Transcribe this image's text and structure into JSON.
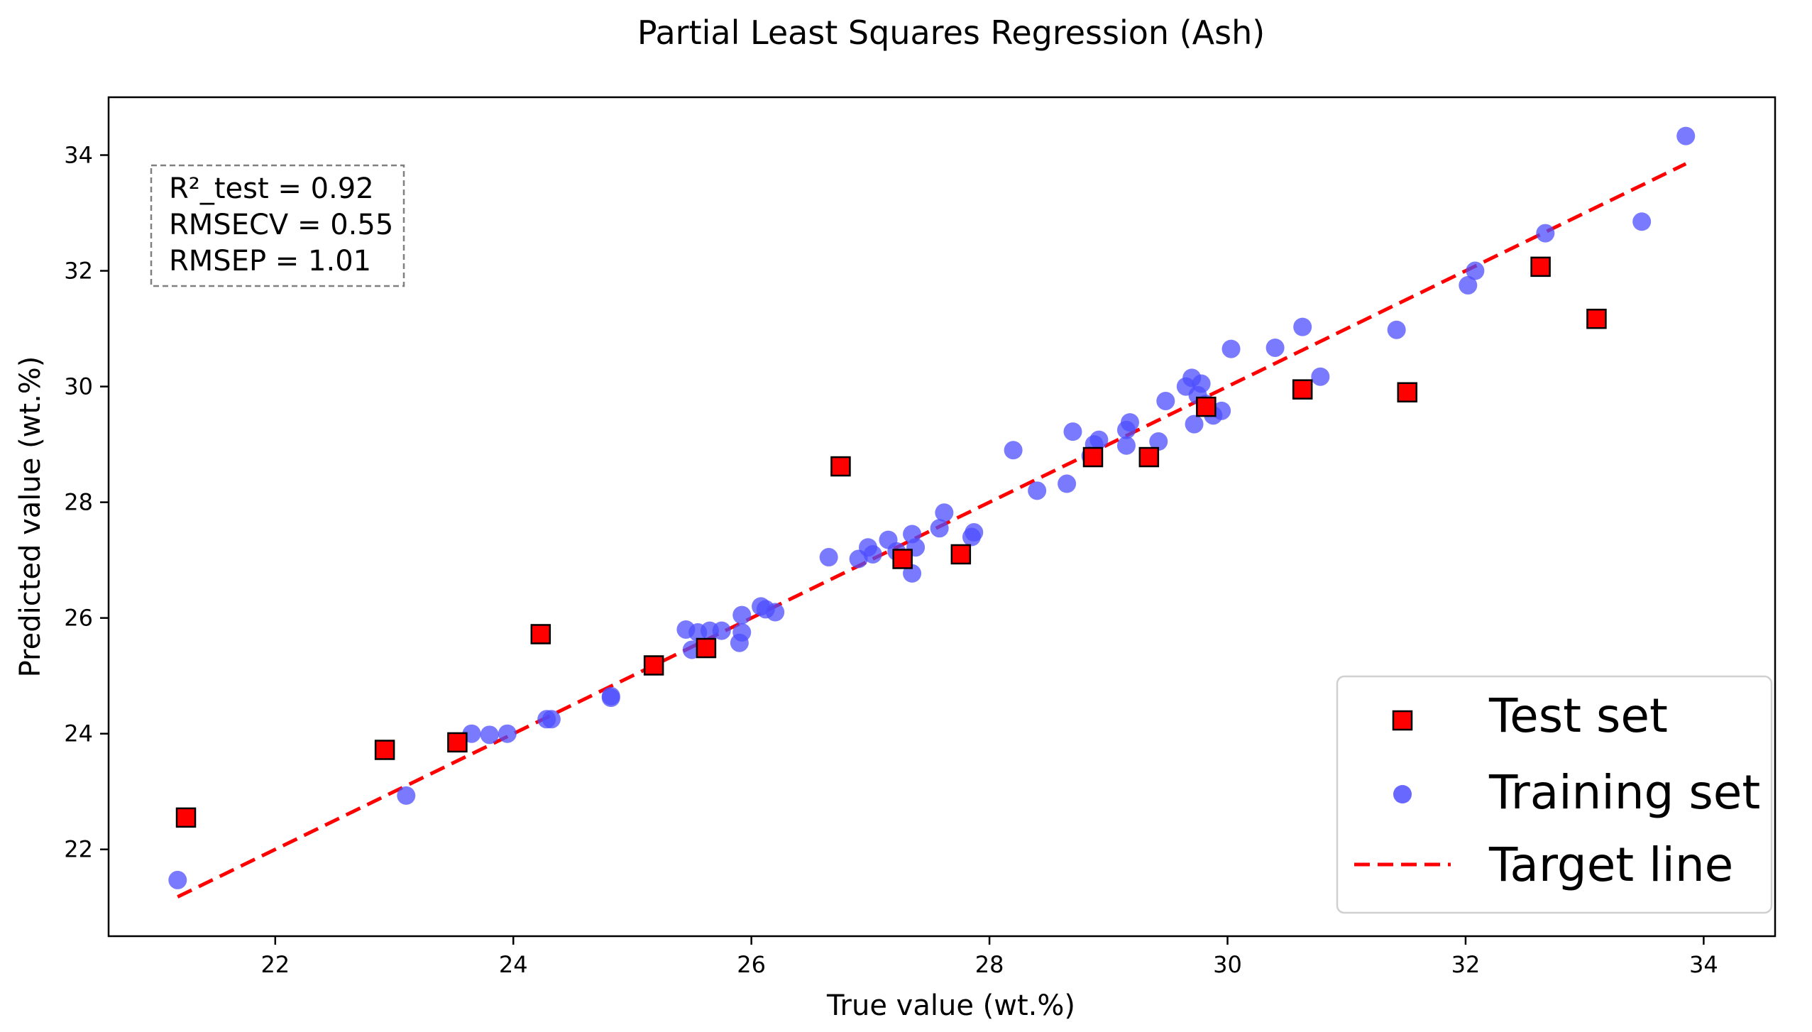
{
  "chart_data": {
    "type": "scatter",
    "title": "Partial Least Squares Regression (Ash)",
    "xlabel": "True value (wt.%)",
    "ylabel": "Predicted value (wt.%)",
    "xlim": [
      20.6,
      34.6
    ],
    "ylim": [
      20.5,
      35.0
    ],
    "xticks": [
      22,
      24,
      26,
      28,
      30,
      32,
      34
    ],
    "yticks": [
      22,
      24,
      26,
      28,
      30,
      32,
      34
    ],
    "grid": false,
    "legend_position": "bottom-right",
    "stats_box": {
      "lines": [
        "R²_test = 0.92",
        "RMSECV = 0.55",
        "RMSEP = 1.01"
      ]
    },
    "colors": {
      "test": "#ff0000",
      "training": "#4d4dff",
      "target": "#ff0000"
    },
    "series": [
      {
        "name": "Test set",
        "marker": "square",
        "points": [
          [
            21.25,
            22.55
          ],
          [
            22.92,
            23.72
          ],
          [
            23.53,
            23.85
          ],
          [
            24.23,
            25.72
          ],
          [
            25.18,
            25.18
          ],
          [
            25.62,
            25.48
          ],
          [
            26.75,
            28.62
          ],
          [
            27.27,
            27.02
          ],
          [
            27.76,
            27.1
          ],
          [
            28.87,
            28.78
          ],
          [
            29.34,
            28.78
          ],
          [
            29.82,
            29.65
          ],
          [
            30.63,
            29.95
          ],
          [
            31.51,
            29.9
          ],
          [
            32.63,
            32.07
          ],
          [
            33.1,
            31.17
          ]
        ]
      },
      {
        "name": "Training set",
        "marker": "circle",
        "points": [
          [
            21.18,
            21.47
          ],
          [
            23.1,
            22.93
          ],
          [
            23.65,
            24.0
          ],
          [
            23.8,
            23.98
          ],
          [
            23.95,
            24.0
          ],
          [
            24.28,
            24.25
          ],
          [
            24.32,
            24.25
          ],
          [
            24.82,
            24.65
          ],
          [
            24.82,
            24.62
          ],
          [
            25.45,
            25.8
          ],
          [
            25.5,
            25.45
          ],
          [
            25.55,
            25.75
          ],
          [
            25.65,
            25.78
          ],
          [
            25.75,
            25.78
          ],
          [
            25.9,
            25.57
          ],
          [
            25.92,
            25.75
          ],
          [
            25.92,
            26.05
          ],
          [
            26.08,
            26.2
          ],
          [
            26.12,
            26.15
          ],
          [
            26.2,
            26.1
          ],
          [
            26.65,
            27.05
          ],
          [
            26.9,
            27.02
          ],
          [
            26.98,
            27.22
          ],
          [
            27.02,
            27.1
          ],
          [
            27.15,
            27.35
          ],
          [
            27.22,
            27.15
          ],
          [
            27.35,
            27.45
          ],
          [
            27.38,
            27.22
          ],
          [
            27.35,
            26.77
          ],
          [
            27.58,
            27.55
          ],
          [
            27.62,
            27.82
          ],
          [
            27.85,
            27.4
          ],
          [
            27.87,
            27.48
          ],
          [
            28.2,
            28.9
          ],
          [
            28.4,
            28.2
          ],
          [
            28.65,
            28.32
          ],
          [
            28.7,
            29.22
          ],
          [
            28.85,
            28.8
          ],
          [
            28.88,
            29.0
          ],
          [
            28.92,
            29.08
          ],
          [
            29.15,
            28.98
          ],
          [
            29.15,
            29.25
          ],
          [
            29.18,
            29.38
          ],
          [
            29.42,
            29.05
          ],
          [
            29.48,
            29.75
          ],
          [
            29.65,
            30.0
          ],
          [
            29.7,
            30.15
          ],
          [
            29.72,
            29.35
          ],
          [
            29.75,
            29.85
          ],
          [
            29.78,
            30.05
          ],
          [
            29.82,
            29.7
          ],
          [
            29.88,
            29.5
          ],
          [
            29.95,
            29.58
          ],
          [
            30.03,
            30.65
          ],
          [
            30.4,
            30.67
          ],
          [
            30.63,
            31.03
          ],
          [
            30.78,
            30.17
          ],
          [
            31.42,
            30.98
          ],
          [
            32.02,
            31.75
          ],
          [
            32.08,
            32.0
          ],
          [
            32.67,
            32.65
          ],
          [
            33.48,
            32.85
          ],
          [
            33.85,
            34.33
          ]
        ]
      },
      {
        "name": "Target line",
        "style": "dashed",
        "points": [
          [
            21.18,
            21.18
          ],
          [
            33.85,
            33.85
          ]
        ]
      }
    ]
  }
}
